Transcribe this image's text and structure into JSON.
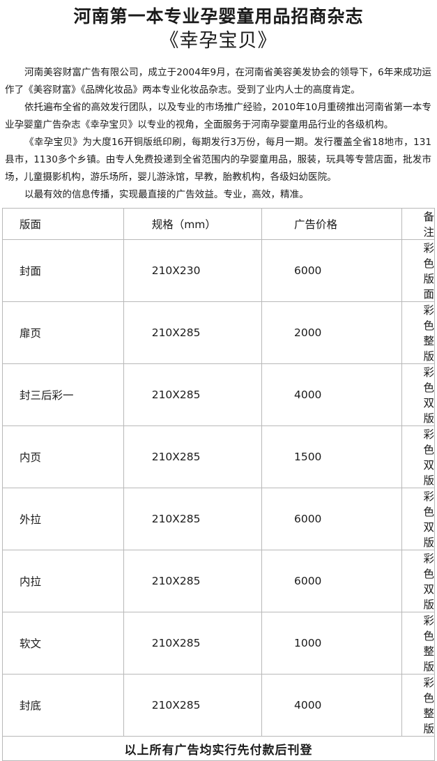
{
  "header": {
    "title": "河南第一本专业孕婴童用品招商杂志",
    "subtitle": "《幸孕宝贝》"
  },
  "intro": {
    "paragraphs": [
      "河南美容财富广告有限公司，成立于2004年9月，在河南省美容美发协会的领导下，6年来成功运作了《美容财富》《品牌化妆品》两本专业化妆品杂志。受到了业内人士的高度肯定。",
      "依托遍布全省的高效发行团队，以及专业的市场推广经验，2010年10月重磅推出河南省第一本专业孕婴童广告杂志《幸孕宝贝》以专业的视角，全面服务于河南孕婴童用品行业的各级机构。",
      "《幸孕宝贝》为大度16开铜版纸印刷，每期发行3万份，每月一期。发行覆盖全省18地市，131县市，1130多个乡镇。由专人免费投递到全省范围内的孕婴童用品，服装，玩具等专营店面，批发市场，儿童摄影机构，游乐场所，婴儿游泳馆，早教，胎教机构，各级妇幼医院。",
      "以最有效的信息传播，实现最直接的广告效益。专业，高效，精准。"
    ]
  },
  "table": {
    "headers": [
      "版面",
      "规格（mm）",
      "广告价格",
      "备注"
    ],
    "rows": [
      [
        "封面",
        "210X230",
        "6000",
        "彩色版面"
      ],
      [
        "扉页",
        "210X285",
        "2000",
        "彩色整版"
      ],
      [
        "封三后彩一",
        "210X285",
        "4000",
        "彩色双版"
      ],
      [
        "内页",
        "210X285",
        "1500",
        "彩色双版"
      ],
      [
        "外拉",
        "210X285",
        "6000",
        "彩色双版"
      ],
      [
        "内拉",
        "210X285",
        "6000",
        "彩色双版"
      ],
      [
        "软文",
        "210X285",
        "1000",
        "彩色整版"
      ],
      [
        "封底",
        "210X285",
        "4000",
        "彩色整版"
      ]
    ],
    "footer": "以上所有广告均实行先付款后刊登"
  }
}
